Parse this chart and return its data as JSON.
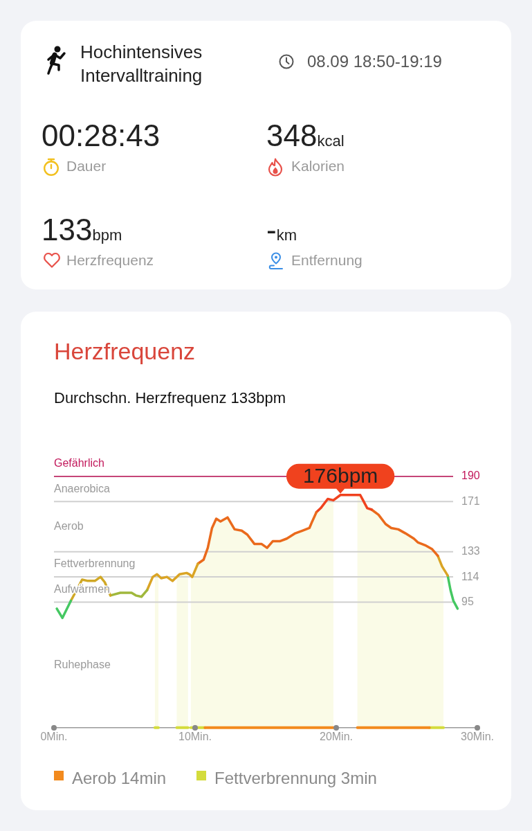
{
  "chart_data": [
    {
      "type": "other",
      "title": "Hochintensives Intervalltraining",
      "annotations": [
        "08.09 18:50-19:19",
        "00:28:43",
        "Dauer",
        "348kcal",
        "Kalorien",
        "133bpm",
        "Herzfrequenz",
        "-km",
        "Entfernung"
      ]
    },
    {
      "type": "line",
      "title": "Herzfrequenz",
      "subtitle": "Durchschn. Herzfrequenz 133bpm",
      "series": [
        {
          "color": "#45c862",
          "x": [
            0.2,
            0.6,
            1.2
          ],
          "values": [
            90,
            83,
            96
          ]
        },
        {
          "color": "#d0a826",
          "x": [
            1.2,
            1.6,
            2.0,
            2.4,
            2.9,
            3.3,
            3.6,
            4.0
          ],
          "values": [
            96,
            104,
            112,
            111,
            111,
            114,
            110,
            100
          ]
        },
        {
          "color": "#a0b83c",
          "x": [
            4.0,
            4.7,
            5.5,
            5.8,
            6.2,
            6.6
          ],
          "values": [
            100,
            102,
            102,
            100,
            99,
            104
          ]
        },
        {
          "color": "#daa424",
          "x": [
            6.6,
            7.0,
            7.3,
            7.6,
            8.0,
            8.4,
            8.9,
            9.4,
            9.6,
            9.8,
            10.2
          ],
          "values": [
            104,
            114,
            116,
            113,
            114,
            111,
            116,
            117,
            116,
            114,
            124
          ]
        },
        {
          "color": "#ea6a1c",
          "x": [
            10.2,
            10.6,
            10.9,
            11.2,
            11.5,
            11.8,
            12.3,
            12.8,
            13.3,
            13.7,
            14.2,
            14.7,
            15.1,
            15.5,
            16.0,
            16.5,
            17.1,
            17.6,
            18.1,
            18.3,
            18.6
          ],
          "values": [
            124,
            127,
            136,
            151,
            158,
            156,
            159,
            150,
            149,
            146,
            139,
            139,
            136,
            141,
            141,
            143,
            147,
            149,
            151,
            156,
            163
          ]
        },
        {
          "color": "#f0421e",
          "x": [
            18.6,
            18.9,
            19.4,
            19.8,
            20.3,
            20.7,
            21.7,
            21.9,
            22.2,
            22.5
          ],
          "values": [
            163,
            166,
            173,
            172,
            176,
            176,
            176,
            172,
            166,
            165
          ]
        },
        {
          "color": "#ea6a1c",
          "x": [
            22.5,
            23.0,
            23.5,
            23.9,
            24.4,
            24.9,
            25.5,
            25.8,
            26.3,
            26.8,
            27.2
          ],
          "values": [
            165,
            161,
            154,
            151,
            150,
            147,
            143,
            140,
            138,
            135,
            130
          ]
        },
        {
          "color": "#daa424",
          "x": [
            27.2,
            27.5,
            27.9
          ],
          "values": [
            130,
            122,
            115
          ]
        },
        {
          "color": "#45c862",
          "x": [
            27.9,
            28.1,
            28.3,
            28.6
          ],
          "values": [
            115,
            104,
            96,
            90
          ]
        },
        {
          "name": "Aerob 14min",
          "color": "#f28a1e",
          "x": [
            10.7,
            19.8,
            20.5,
            21.5,
            26.6
          ],
          "values": [
            0,
            0,
            null,
            0,
            0
          ]
        },
        {
          "name": "Fettverbrennung 3min",
          "color": "#d4dc3c",
          "x": [
            7.15,
            7.4,
            8.0,
            8.7,
            9.5,
            9.6,
            9.7,
            10.7,
            20.0,
            26.6,
            27.6
          ],
          "values": [
            0,
            0,
            null,
            0,
            0,
            null,
            0,
            0,
            null,
            0,
            0
          ]
        }
      ],
      "xlim": [
        0,
        30
      ],
      "xticks": [
        {
          "value": 0,
          "label": "0Min."
        },
        {
          "value": 10,
          "label": "10Min."
        },
        {
          "value": 20,
          "label": "20Min."
        },
        {
          "value": 30,
          "label": "30Min."
        }
      ],
      "ylim": [
        0,
        190
      ],
      "yticks": [
        95,
        114,
        133,
        171,
        190
      ],
      "grid": "y",
      "ref_lines": [
        {
          "axis": "y",
          "value": 190,
          "label": "Gefährlich",
          "color": "#c2185b"
        }
      ],
      "bands": [
        {
          "axis": "x",
          "from": 7.15,
          "to": 7.4,
          "color": "#fafbe7"
        },
        {
          "axis": "x",
          "from": 8.7,
          "to": 9.5,
          "color": "#fafbe7"
        },
        {
          "axis": "x",
          "from": 9.7,
          "to": 19.8,
          "color": "#fafbe7"
        },
        {
          "axis": "x",
          "from": 21.5,
          "to": 27.6,
          "color": "#fafbe7"
        }
      ],
      "annotations": [
        "Anaerobica",
        "Aerob",
        "Fettverbrennung",
        "Aufwärmen",
        "Ruhephase",
        {
          "text": "176bpm",
          "x": 20.3,
          "y": 176
        }
      ],
      "legend": "bottom"
    }
  ]
}
